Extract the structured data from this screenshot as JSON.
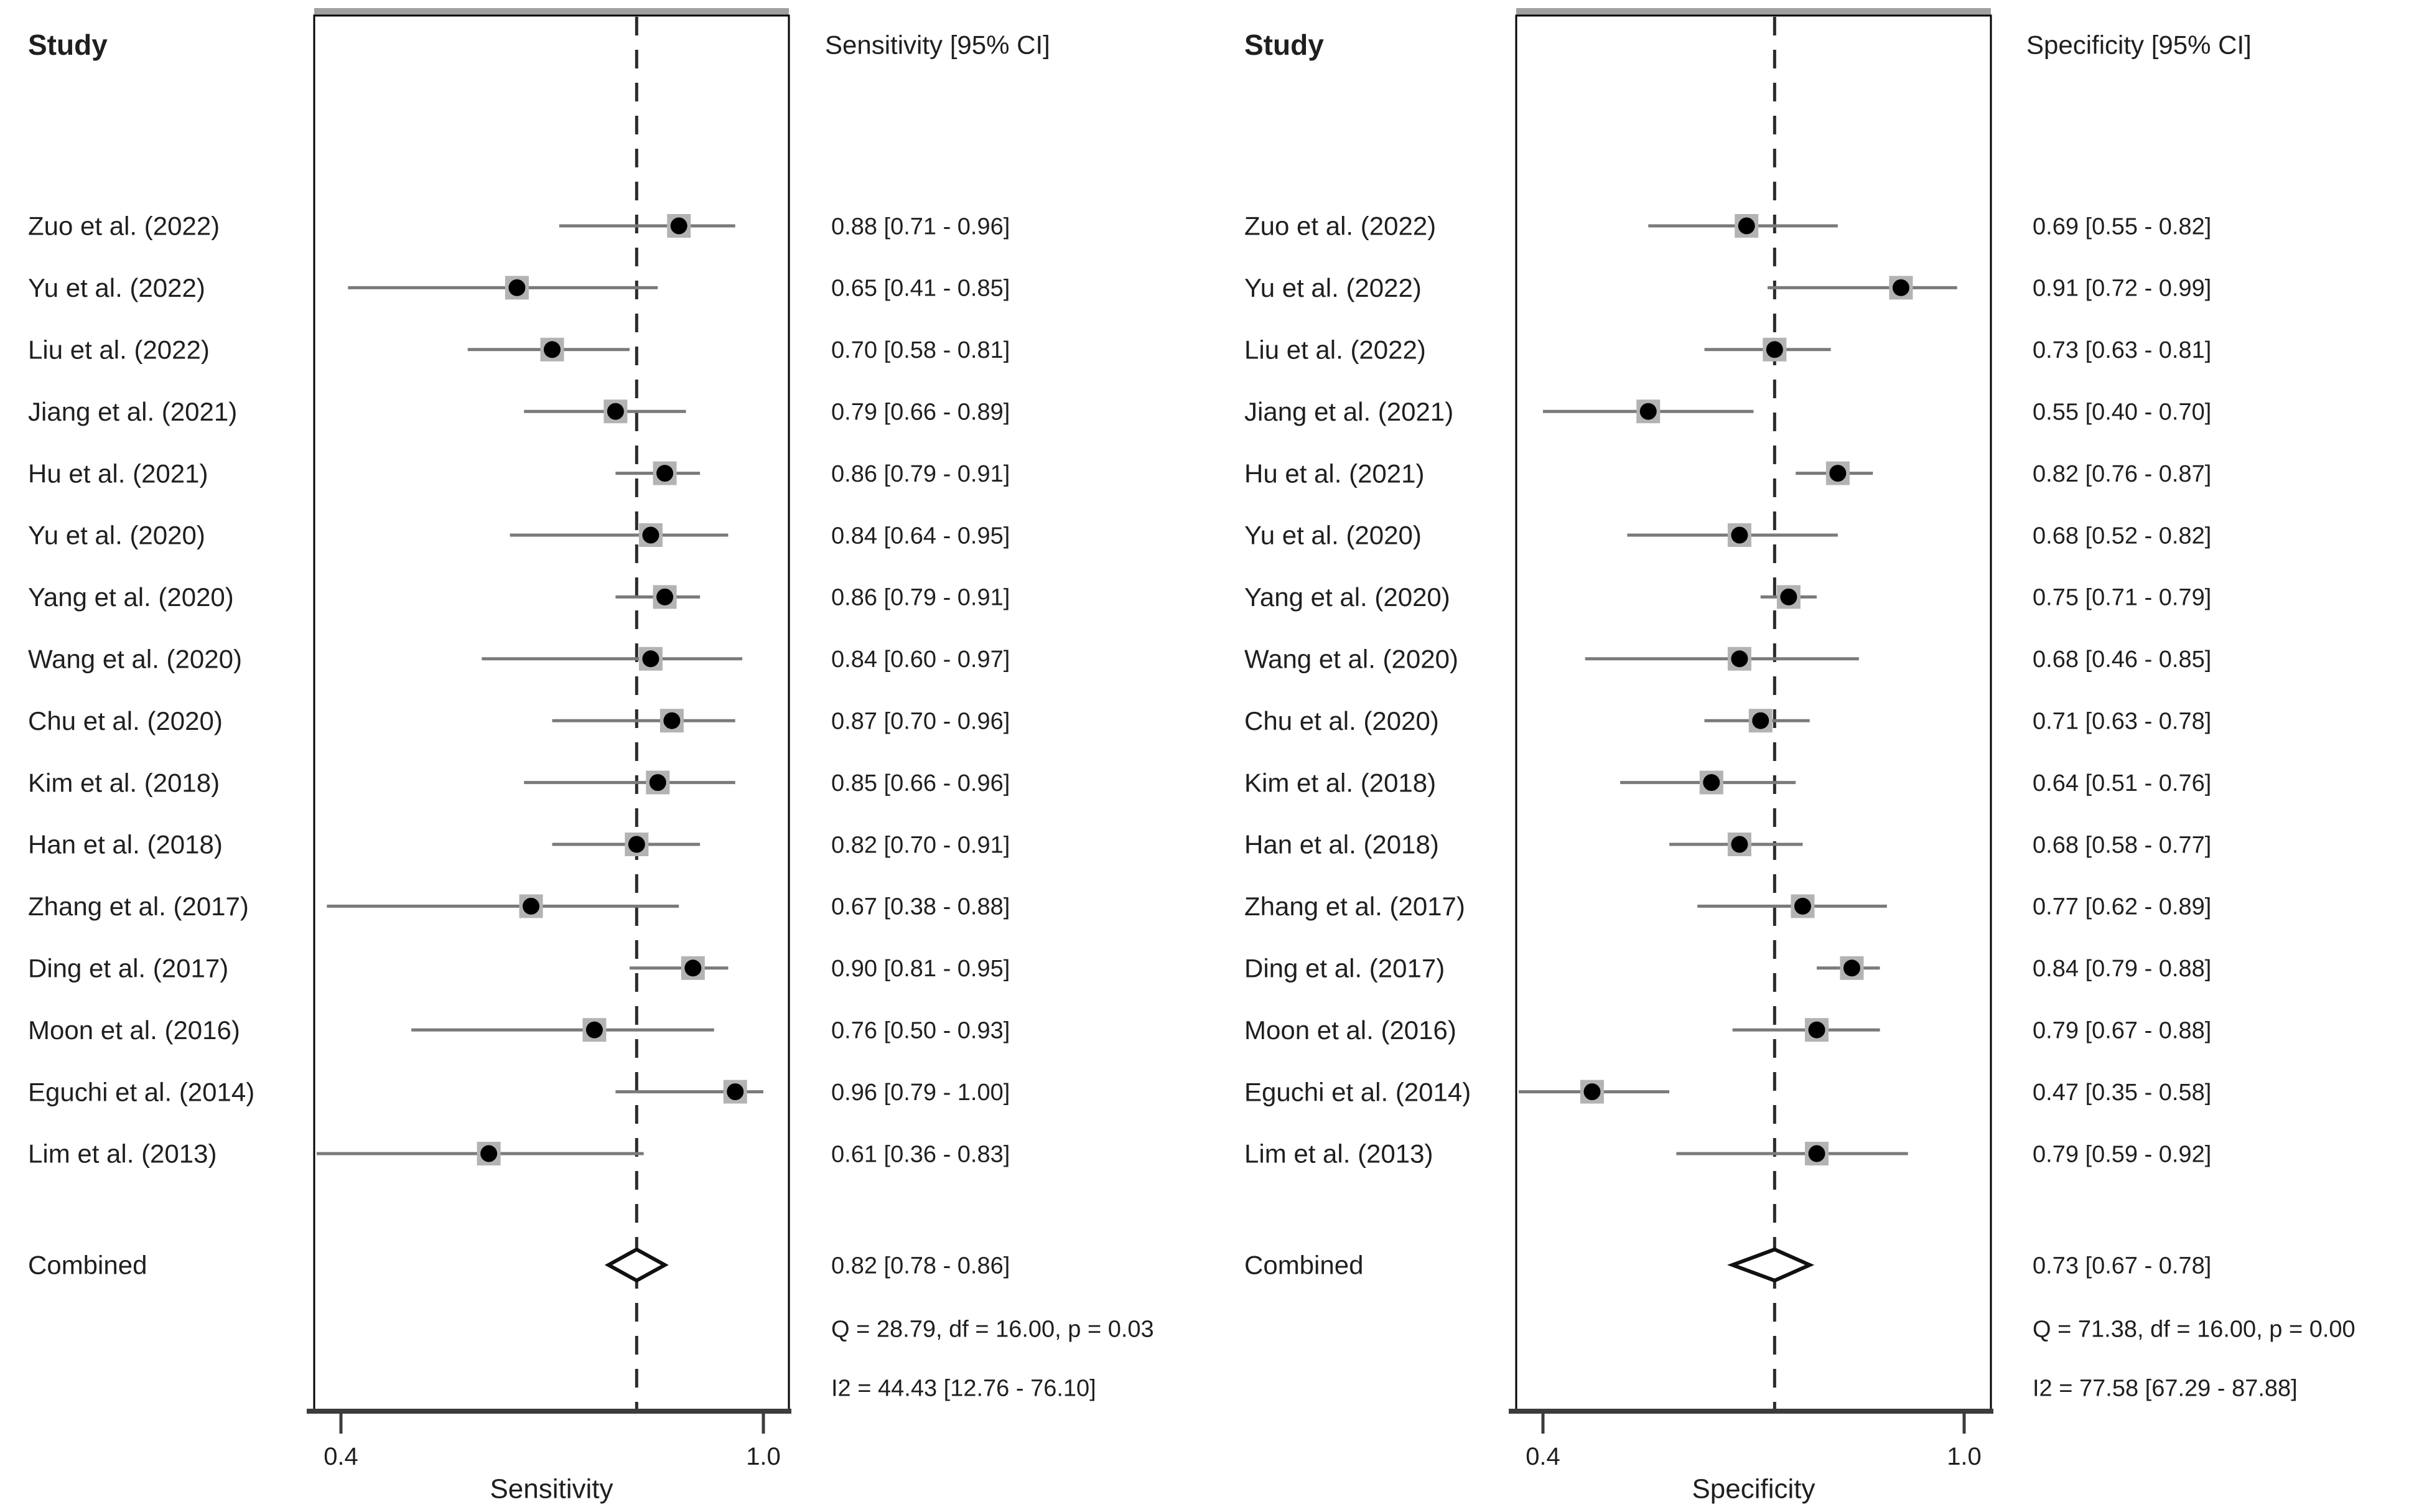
{
  "figure": {
    "description": "Paired forest plots of diagnostic meta-analysis",
    "left_panel_title": "Sensitivity",
    "right_panel_title": "Specificity"
  },
  "chart_data": {
    "type": "forest",
    "x_axis": {
      "tick_values": [
        0.4,
        1.0
      ],
      "tick_labels": [
        "0.4",
        "1.0"
      ],
      "xlim": [
        0.36,
        1.04
      ],
      "grid": false
    },
    "colors": {
      "ci_line": "#7a7a7a",
      "marker_square": "#b3b3b3",
      "marker_dot": "#000000",
      "dashed_line": "#2b2b2b",
      "box_border": "#000000",
      "top_band": "#a0a0a0",
      "axis_line": "#3c3c3c",
      "text": "#1f1f1f",
      "tick_text": "#3d4852",
      "diamond_fill": "#ffffff",
      "diamond_stroke": "#111111"
    },
    "panels": [
      {
        "id": "sensitivity",
        "study_header": "Study",
        "value_header": "Sensitivity [95% CI]",
        "xlabel": "Sensitivity",
        "dashed_at": 0.82,
        "studies": [
          {
            "label": "Zuo et al. (2022)",
            "est": 0.88,
            "lo": 0.71,
            "hi": 0.96,
            "text": "0.88 [0.71 - 0.96]"
          },
          {
            "label": "Yu et al. (2022)",
            "est": 0.65,
            "lo": 0.41,
            "hi": 0.85,
            "text": "0.65 [0.41 - 0.85]"
          },
          {
            "label": "Liu et al. (2022)",
            "est": 0.7,
            "lo": 0.58,
            "hi": 0.81,
            "text": "0.70 [0.58 - 0.81]"
          },
          {
            "label": "Jiang et al. (2021)",
            "est": 0.79,
            "lo": 0.66,
            "hi": 0.89,
            "text": "0.79 [0.66 - 0.89]"
          },
          {
            "label": "Hu et al. (2021)",
            "est": 0.86,
            "lo": 0.79,
            "hi": 0.91,
            "text": "0.86 [0.79 - 0.91]"
          },
          {
            "label": "Yu et al. (2020)",
            "est": 0.84,
            "lo": 0.64,
            "hi": 0.95,
            "text": "0.84 [0.64 - 0.95]"
          },
          {
            "label": "Yang et al. (2020)",
            "est": 0.86,
            "lo": 0.79,
            "hi": 0.91,
            "text": "0.86 [0.79 - 0.91]"
          },
          {
            "label": "Wang et al. (2020)",
            "est": 0.84,
            "lo": 0.6,
            "hi": 0.97,
            "text": "0.84 [0.60 - 0.97]"
          },
          {
            "label": "Chu et al. (2020)",
            "est": 0.87,
            "lo": 0.7,
            "hi": 0.96,
            "text": "0.87 [0.70 - 0.96]"
          },
          {
            "label": "Kim et al. (2018)",
            "est": 0.85,
            "lo": 0.66,
            "hi": 0.96,
            "text": "0.85 [0.66 - 0.96]"
          },
          {
            "label": "Han et al. (2018)",
            "est": 0.82,
            "lo": 0.7,
            "hi": 0.91,
            "text": "0.82 [0.70 - 0.91]"
          },
          {
            "label": "Zhang et al. (2017)",
            "est": 0.67,
            "lo": 0.38,
            "hi": 0.88,
            "text": "0.67 [0.38 - 0.88]"
          },
          {
            "label": "Ding et al. (2017)",
            "est": 0.9,
            "lo": 0.81,
            "hi": 0.95,
            "text": "0.90 [0.81 - 0.95]"
          },
          {
            "label": "Moon et al. (2016)",
            "est": 0.76,
            "lo": 0.5,
            "hi": 0.93,
            "text": "0.76 [0.50 - 0.93]"
          },
          {
            "label": "Eguchi et al. (2014)",
            "est": 0.96,
            "lo": 0.79,
            "hi": 1.0,
            "text": "0.96 [0.79 - 1.00]"
          },
          {
            "label": "Lim et al. (2013)",
            "est": 0.61,
            "lo": 0.36,
            "hi": 0.83,
            "text": "0.61 [0.36 - 0.83]"
          }
        ],
        "combined": {
          "label": "Combined",
          "est": 0.82,
          "lo": 0.78,
          "hi": 0.86,
          "text": "0.82 [0.78 - 0.86]"
        },
        "heterogeneity_q": "Q = 28.79, df = 16.00, p =  0.03",
        "heterogeneity_i2": "I2 = 44.43 [12.76 - 76.10]"
      },
      {
        "id": "specificity",
        "study_header": "Study",
        "value_header": "Specificity [95% CI]",
        "xlabel": "Specificity",
        "dashed_at": 0.73,
        "studies": [
          {
            "label": "Zuo et al. (2022)",
            "est": 0.69,
            "lo": 0.55,
            "hi": 0.82,
            "text": "0.69 [0.55 - 0.82]"
          },
          {
            "label": "Yu et al. (2022)",
            "est": 0.91,
            "lo": 0.72,
            "hi": 0.99,
            "text": "0.91 [0.72 - 0.99]"
          },
          {
            "label": "Liu et al. (2022)",
            "est": 0.73,
            "lo": 0.63,
            "hi": 0.81,
            "text": "0.73 [0.63 - 0.81]"
          },
          {
            "label": "Jiang et al. (2021)",
            "est": 0.55,
            "lo": 0.4,
            "hi": 0.7,
            "text": "0.55 [0.40 - 0.70]"
          },
          {
            "label": "Hu et al. (2021)",
            "est": 0.82,
            "lo": 0.76,
            "hi": 0.87,
            "text": "0.82 [0.76 - 0.87]"
          },
          {
            "label": "Yu et al. (2020)",
            "est": 0.68,
            "lo": 0.52,
            "hi": 0.82,
            "text": "0.68 [0.52 - 0.82]"
          },
          {
            "label": "Yang et al. (2020)",
            "est": 0.75,
            "lo": 0.71,
            "hi": 0.79,
            "text": "0.75 [0.71 - 0.79]"
          },
          {
            "label": "Wang et al. (2020)",
            "est": 0.68,
            "lo": 0.46,
            "hi": 0.85,
            "text": "0.68 [0.46 - 0.85]"
          },
          {
            "label": "Chu et al. (2020)",
            "est": 0.71,
            "lo": 0.63,
            "hi": 0.78,
            "text": "0.71 [0.63 - 0.78]"
          },
          {
            "label": "Kim et al. (2018)",
            "est": 0.64,
            "lo": 0.51,
            "hi": 0.76,
            "text": "0.64 [0.51 - 0.76]"
          },
          {
            "label": "Han et al. (2018)",
            "est": 0.68,
            "lo": 0.58,
            "hi": 0.77,
            "text": "0.68 [0.58 - 0.77]"
          },
          {
            "label": "Zhang et al. (2017)",
            "est": 0.77,
            "lo": 0.62,
            "hi": 0.89,
            "text": "0.77 [0.62 - 0.89]"
          },
          {
            "label": "Ding et al. (2017)",
            "est": 0.84,
            "lo": 0.79,
            "hi": 0.88,
            "text": "0.84 [0.79 - 0.88]"
          },
          {
            "label": "Moon et al. (2016)",
            "est": 0.79,
            "lo": 0.67,
            "hi": 0.88,
            "text": "0.79 [0.67 - 0.88]"
          },
          {
            "label": "Eguchi et al. (2014)",
            "est": 0.47,
            "lo": 0.35,
            "hi": 0.58,
            "text": "0.47 [0.35 - 0.58]"
          },
          {
            "label": "Lim et al. (2013)",
            "est": 0.79,
            "lo": 0.59,
            "hi": 0.92,
            "text": "0.79 [0.59 - 0.92]"
          }
        ],
        "combined": {
          "label": "Combined",
          "est": 0.73,
          "lo": 0.67,
          "hi": 0.78,
          "text": "0.73 [0.67 - 0.78]"
        },
        "heterogeneity_q": "Q = 71.38, df = 16.00, p =  0.00",
        "heterogeneity_i2": "I2 = 77.58 [67.29 - 87.88]"
      }
    ]
  }
}
